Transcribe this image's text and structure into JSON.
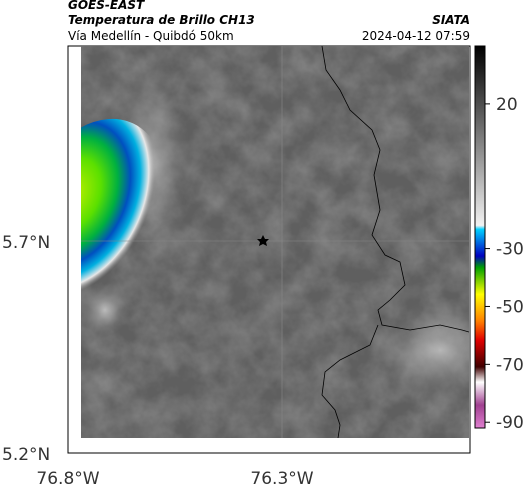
{
  "header": {
    "title": "GOES-EAST",
    "subtitle": "Temperatura de Brillo CH13",
    "location": "Vía Medellín - Quibdó 50km",
    "source": "SIATA",
    "timestamp": "2024-04-12 07:59"
  },
  "map": {
    "lat_ticks": [
      "5.7°N",
      "5.2°N"
    ],
    "lon_ticks": [
      "76.8°W",
      "76.3°W"
    ]
  },
  "colorbar": {
    "lim": [
      40,
      -92
    ],
    "ticks": [
      20,
      -30,
      -50,
      -70,
      -90
    ]
  }
}
